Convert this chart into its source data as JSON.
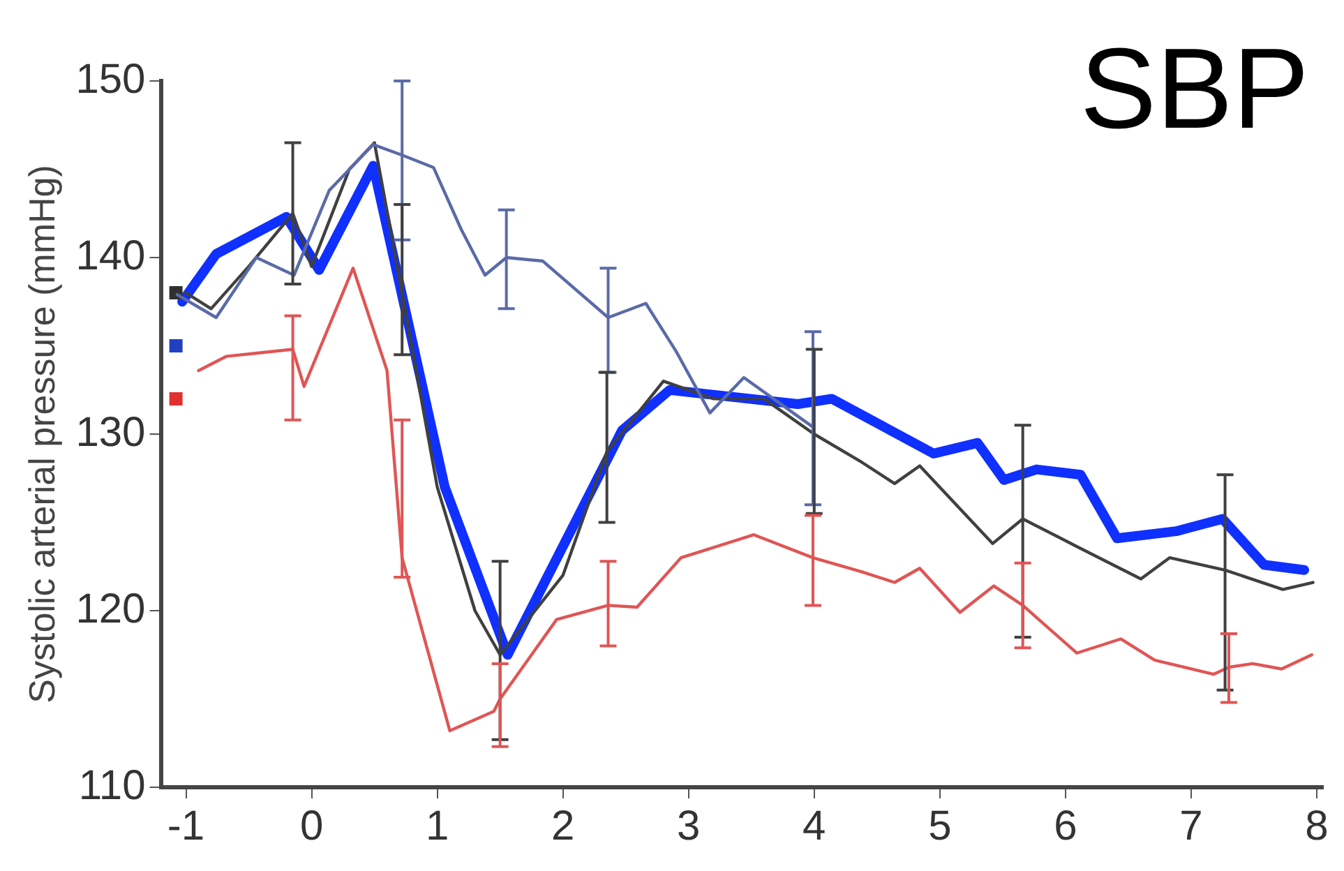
{
  "chart_data": {
    "type": "line",
    "title": "SBP",
    "ylabel": "Systolic arterial pressure (mmHg)",
    "xlim": [
      -1.2,
      8.05
    ],
    "xticks": [
      -1,
      0,
      1,
      2,
      3,
      4,
      5,
      6,
      7,
      8
    ],
    "ylim": [
      110,
      150
    ],
    "yticks": [
      110,
      120,
      130,
      140,
      150
    ],
    "grid": false,
    "legend": false,
    "marker": "none",
    "line_style": "solid",
    "series": [
      {
        "color": "#5a6aa8",
        "x": [
          -1.07,
          -0.76,
          -0.44,
          -0.14,
          0.14,
          0.49,
          0.72,
          0.97,
          1.19,
          1.38,
          1.55,
          1.84,
          2.36,
          2.66,
          2.9,
          3.17,
          3.44,
          3.99
        ],
        "values": [
          137.9,
          136.6,
          140,
          139,
          143.8,
          146.4,
          145.8,
          145.1,
          141.6,
          139,
          140,
          139.8,
          136.6,
          137.4,
          134.7,
          131.2,
          133.2,
          130.4
        ],
        "errors": [
          null,
          null,
          null,
          null,
          null,
          null,
          [
            141,
            150
          ],
          null,
          null,
          null,
          [
            137.1,
            142.7
          ],
          null,
          [
            133.5,
            139.4
          ],
          null,
          null,
          null,
          null,
          [
            126,
            135.8
          ]
        ]
      },
      {
        "color": "#404040",
        "x": [
          -1.0,
          -0.8,
          -0.5,
          -0.15,
          0.0,
          0.3,
          0.5,
          0.72,
          1.0,
          1.3,
          1.5,
          2.0,
          2.35,
          2.8,
          3.2,
          3.6,
          4.0,
          4.38,
          4.64,
          4.84,
          5.42,
          5.66,
          6.1,
          6.6,
          6.83,
          7.27,
          7.73,
          7.97
        ],
        "values": [
          138,
          137.1,
          139.5,
          142.5,
          139.5,
          145,
          146.5,
          138,
          127,
          120,
          117.5,
          122,
          129,
          133,
          132,
          132,
          130,
          128.4,
          127.2,
          128.2,
          123.8,
          125.2,
          123.6,
          121.8,
          123,
          122.3,
          121.2,
          121.6
        ],
        "errors": [
          null,
          null,
          null,
          [
            138.5,
            146.5
          ],
          null,
          null,
          null,
          [
            134.5,
            143
          ],
          null,
          null,
          [
            112.7,
            122.8
          ],
          null,
          [
            125,
            133.5
          ],
          null,
          null,
          null,
          [
            125.5,
            134.8
          ],
          null,
          null,
          null,
          null,
          [
            118.5,
            130.5
          ],
          null,
          null,
          null,
          [
            115.5,
            127.7
          ],
          null,
          null
        ]
      },
      {
        "color": "#e05555",
        "x": [
          -0.9,
          -0.68,
          -0.15,
          -0.06,
          0.33,
          0.6,
          0.72,
          1.1,
          1.45,
          1.5,
          1.95,
          2.36,
          2.59,
          2.94,
          3.52,
          3.99,
          4.38,
          4.64,
          4.84,
          5.16,
          5.43,
          5.66,
          6.09,
          6.44,
          6.71,
          7.18,
          7.3,
          7.49,
          7.72,
          7.96
        ],
        "values": [
          133.6,
          134.4,
          134.8,
          132.7,
          139.4,
          133.6,
          123,
          113.2,
          114.3,
          115,
          119.5,
          120.3,
          120.2,
          123,
          124.3,
          123,
          122.2,
          121.6,
          122.4,
          119.9,
          121.4,
          120.3,
          117.6,
          118.4,
          117.2,
          116.4,
          116.8,
          117,
          116.7,
          117.5
        ],
        "errors": [
          null,
          null,
          [
            130.8,
            136.7
          ],
          null,
          null,
          null,
          [
            121.9,
            130.8
          ],
          null,
          null,
          [
            112.3,
            117
          ],
          null,
          [
            118,
            122.8
          ],
          null,
          null,
          null,
          [
            120.3,
            125.4
          ],
          null,
          null,
          null,
          null,
          null,
          [
            117.9,
            122.7
          ],
          null,
          null,
          null,
          null,
          [
            114.8,
            118.7
          ],
          null,
          null,
          null
        ]
      },
      {
        "type": "scatter",
        "marker": "square",
        "x": [
          -1.08,
          -1.08,
          -1.08
        ],
        "values": [
          138,
          135,
          132
        ],
        "colors": [
          "#303030",
          "#2040c0",
          "#e03030"
        ]
      },
      {
        "color": "#1030ff",
        "x": [
          -1.03,
          -0.76,
          -0.2,
          0.06,
          0.49,
          1.06,
          1.56,
          2.47,
          2.85,
          3.87,
          4.14,
          4.95,
          5.3,
          5.51,
          5.77,
          6.12,
          6.41,
          6.88,
          7.25,
          7.58,
          7.9
        ],
        "values": [
          137.5,
          140.2,
          142.3,
          139.3,
          145.2,
          127,
          117.5,
          130.2,
          132.5,
          131.7,
          132,
          128.9,
          129.5,
          127.4,
          128,
          127.7,
          124.1,
          124.5,
          125.2,
          122.6,
          122.3
        ]
      }
    ]
  }
}
